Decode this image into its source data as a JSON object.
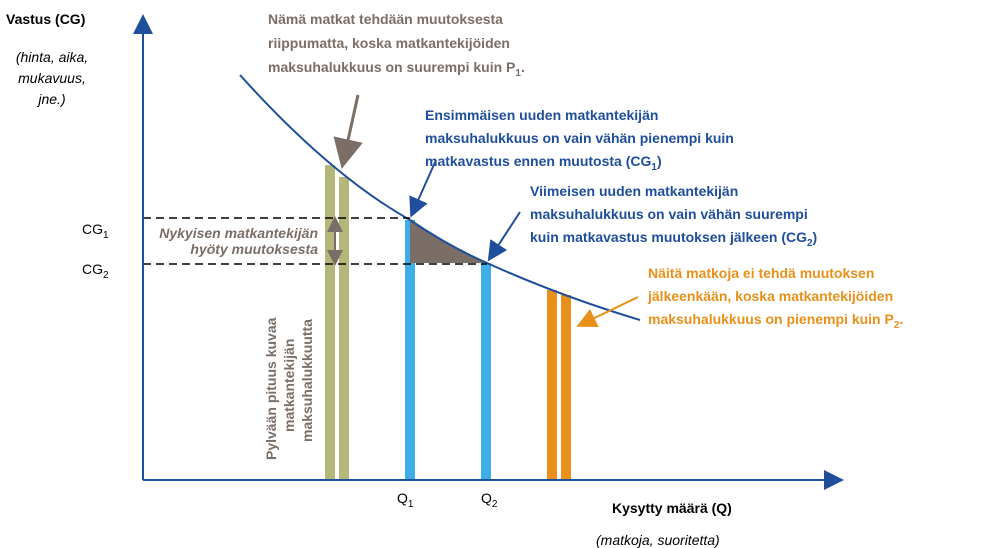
{
  "y_axis": {
    "title": "Vastus (CG)",
    "units": [
      "(hinta, aika,",
      "mukavuus,",
      "jne.)"
    ]
  },
  "x_axis": {
    "title": "Kysytty määrä (Q)",
    "units": "(matkoja, suoritetta)"
  },
  "cg_labels": [
    {
      "text": "CG",
      "sub": "1"
    },
    {
      "text": "CG",
      "sub": "2"
    }
  ],
  "q_labels": [
    {
      "text": "Q",
      "sub": "1"
    },
    {
      "text": "Q",
      "sub": "2"
    }
  ],
  "benefit_label": [
    "Nykyisen matkantekijän",
    "hyöty muutoksesta"
  ],
  "bar_label": [
    "Pylvään pituus kuvaa",
    "matkantekijän",
    "maksuhalukkuutta"
  ],
  "notes": {
    "grey": {
      "lines": [
        "Nämä matkat tehdään muutoksesta",
        "riippumatta, koska matkantekijöiden",
        "maksuhalukkuus on suurempi kuin P"
      ],
      "sub": "1",
      "after": "."
    },
    "first": {
      "lines": [
        "Ensimmäisen uuden matkantekijän",
        "maksuhalukkuus on vain vähän pienempi kuin",
        "matkavastus ennen muutosta (CG"
      ],
      "sub": "1",
      "after": ")"
    },
    "last": {
      "lines": [
        "Viimeisen uuden matkantekijän",
        "maksuhalukkuus on vain vähän suurempi",
        "kuin matkavastus muutoksen jälkeen (CG"
      ],
      "sub": "2",
      "after": ")"
    },
    "orange": {
      "lines": [
        "Näitä matkoja ei tehdä muutoksen",
        "jälkeenkään, koska matkantekijöiden",
        "maksuhalukkuus on pienempi kuin P"
      ],
      "sub": "2",
      "after": "."
    }
  }
}
